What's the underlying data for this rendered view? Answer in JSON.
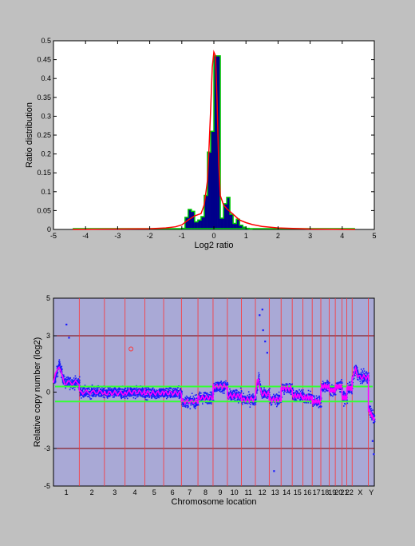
{
  "chart_data": [
    {
      "type": "bar",
      "title": "",
      "xlabel": "Log2 ratio",
      "ylabel": "Ratio distribution",
      "xlim": [
        -5,
        5
      ],
      "ylim": [
        0,
        0.5
      ],
      "xticks": [
        "-5",
        "-4",
        "-3",
        "-2",
        "-1",
        "0",
        "1",
        "2",
        "3",
        "4",
        "5"
      ],
      "yticks": [
        "0",
        "0.05",
        "0.1",
        "0.15",
        "0.2",
        "0.25",
        "0.3",
        "0.35",
        "0.4",
        "0.45",
        "0.5"
      ],
      "grid": false,
      "colors": {
        "bars": "#00008b",
        "fit": "#ff0000",
        "envelope": "#00cc00",
        "background": "#ffffff"
      },
      "bins": {
        "edges": [
          -1.0,
          -0.9,
          -0.8,
          -0.7,
          -0.6,
          -0.5,
          -0.4,
          -0.3,
          -0.2,
          -0.1,
          0.0,
          0.1,
          0.2,
          0.3,
          0.4,
          0.5,
          0.6,
          0.7,
          0.8,
          0.9,
          1.0,
          1.1,
          1.2
        ],
        "values": [
          0.003,
          0.032,
          0.053,
          0.048,
          0.02,
          0.025,
          0.034,
          0.09,
          0.205,
          0.26,
          0.46,
          0.46,
          0.03,
          0.068,
          0.085,
          0.04,
          0.016,
          0.027,
          0.011,
          0.006,
          0.003,
          0.001
        ]
      },
      "fit_curve": {
        "x": [
          -4.4,
          -3.0,
          -2.0,
          -1.5,
          -1.2,
          -1.0,
          -0.8,
          -0.6,
          -0.4,
          -0.3,
          -0.2,
          -0.15,
          -0.1,
          -0.05,
          0.0,
          0.05,
          0.1,
          0.15,
          0.2,
          0.3,
          0.4,
          0.6,
          0.8,
          1.0,
          1.2,
          1.5,
          2.0,
          3.0,
          4.4
        ],
        "y": [
          0.0,
          0.001,
          0.002,
          0.004,
          0.007,
          0.012,
          0.025,
          0.036,
          0.042,
          0.065,
          0.13,
          0.22,
          0.32,
          0.43,
          0.47,
          0.46,
          0.34,
          0.18,
          0.09,
          0.065,
          0.055,
          0.04,
          0.025,
          0.018,
          0.013,
          0.008,
          0.004,
          0.001,
          0.0
        ]
      }
    },
    {
      "type": "scatter",
      "title": "",
      "xlabel": "Chromosome location",
      "ylabel": "Relative copy number (log2)",
      "ylim": [
        -5,
        5
      ],
      "yticks": [
        "-5",
        "-3",
        "0",
        "3",
        "5"
      ],
      "chromosomes": [
        "1",
        "2",
        "3",
        "4",
        "5",
        "6",
        "7",
        "8",
        "9",
        "10",
        "11",
        "12",
        "13",
        "14",
        "15",
        "16",
        "17",
        "18",
        "19",
        "20",
        "21",
        "22",
        "X",
        "Y"
      ],
      "chromosome_sizes": [
        248,
        242,
        198,
        190,
        181,
        171,
        159,
        145,
        138,
        134,
        135,
        133,
        114,
        107,
        102,
        90,
        83,
        80,
        59,
        64,
        47,
        51,
        156,
        57
      ],
      "reference_lines": [
        3,
        -3
      ],
      "threshold_lines": [
        0.3,
        -0.5
      ],
      "colors": {
        "points": "#1a1aff",
        "smoothed": "#ff00ff",
        "thresholds": "#33ff33",
        "boundaries": "#ff3333",
        "reference": "#800000",
        "outlier": "#ff3333",
        "background": "#a9a9d6"
      },
      "segments": [
        {
          "chr": "1",
          "level": 0.5,
          "peak": 1.5
        },
        {
          "chr": "2",
          "level": 0.0
        },
        {
          "chr": "3",
          "level": -0.05
        },
        {
          "chr": "4",
          "level": 0.0
        },
        {
          "chr": "5",
          "level": -0.05
        },
        {
          "chr": "6",
          "level": -0.05
        },
        {
          "chr": "7",
          "level": -0.5
        },
        {
          "chr": "8",
          "level": -0.3
        },
        {
          "chr": "9",
          "level": 0.3
        },
        {
          "chr": "10",
          "level": -0.2
        },
        {
          "chr": "11",
          "level": -0.4
        },
        {
          "chr": "12",
          "level": -0.1,
          "peak": 0.8
        },
        {
          "chr": "13",
          "level": -0.4
        },
        {
          "chr": "14",
          "level": 0.2
        },
        {
          "chr": "15",
          "level": -0.2
        },
        {
          "chr": "16",
          "level": -0.3
        },
        {
          "chr": "17",
          "level": -0.5
        },
        {
          "chr": "18",
          "level": 0.3
        },
        {
          "chr": "19",
          "level": 0.1
        },
        {
          "chr": "20",
          "level": 0.3
        },
        {
          "chr": "21",
          "level": -0.3
        },
        {
          "chr": "22",
          "level": 0.2
        },
        {
          "chr": "X",
          "level": 0.8,
          "peak": 1.2
        },
        {
          "chr": "Y",
          "level": -0.9,
          "trough": -1.5
        }
      ],
      "outliers": [
        {
          "chr": "1",
          "pos": 0.5,
          "value": 3.6
        },
        {
          "chr": "1",
          "pos": 0.6,
          "value": 2.9
        },
        {
          "chr": "12",
          "pos": 0.3,
          "value": 4.1
        },
        {
          "chr": "12",
          "pos": 0.5,
          "value": 4.4
        },
        {
          "chr": "12",
          "pos": 0.55,
          "value": 3.3
        },
        {
          "chr": "12",
          "pos": 0.7,
          "value": 2.7
        },
        {
          "chr": "12",
          "pos": 0.85,
          "value": 2.1
        },
        {
          "chr": "13",
          "pos": 0.4,
          "value": -4.2
        },
        {
          "chr": "Y",
          "pos": 0.7,
          "value": -2.6
        },
        {
          "chr": "Y",
          "pos": 0.9,
          "value": -3.3
        }
      ],
      "annotation_circle": {
        "chr": "4",
        "pos": 0.3,
        "value": 2.3
      }
    }
  ]
}
